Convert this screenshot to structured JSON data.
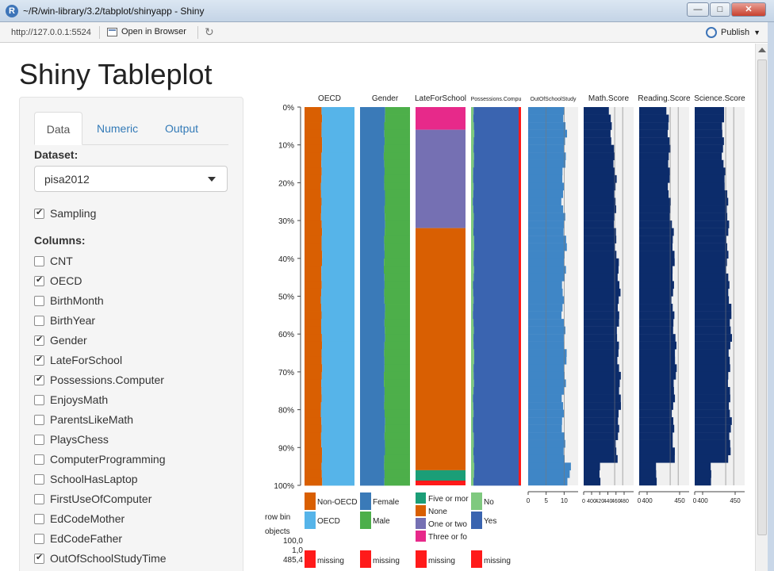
{
  "window": {
    "title": "~/R/win-library/3.2/tabplot/shinyapp - Shiny",
    "app_icon": "R",
    "buttons": [
      "minimize-icon",
      "maximize-icon",
      "close-icon"
    ]
  },
  "toolbar": {
    "url": "http://127.0.0.1:5524",
    "open_in_browser": "Open in Browser",
    "publish": "Publish"
  },
  "page": {
    "title": "Shiny Tableplot"
  },
  "sidebar": {
    "tabs": [
      "Data",
      "Numeric",
      "Output"
    ],
    "active_tab": "Data",
    "dataset_label": "Dataset:",
    "dataset_value": "pisa2012",
    "sampling": {
      "label": "Sampling",
      "checked": true
    },
    "columns_label": "Columns:",
    "columns": [
      {
        "label": "CNT",
        "checked": false
      },
      {
        "label": "OECD",
        "checked": true
      },
      {
        "label": "BirthMonth",
        "checked": false
      },
      {
        "label": "BirthYear",
        "checked": false
      },
      {
        "label": "Gender",
        "checked": true
      },
      {
        "label": "LateForSchool",
        "checked": true
      },
      {
        "label": "Possessions.Computer",
        "checked": true
      },
      {
        "label": "EnjoysMath",
        "checked": false
      },
      {
        "label": "ParentsLikeMath",
        "checked": false
      },
      {
        "label": "PlaysChess",
        "checked": false
      },
      {
        "label": "ComputerProgramming",
        "checked": false
      },
      {
        "label": "SchoolHasLaptop",
        "checked": false
      },
      {
        "label": "FirstUseOfComputer",
        "checked": false
      },
      {
        "label": "EdCodeMother",
        "checked": false
      },
      {
        "label": "EdCodeFather",
        "checked": false
      },
      {
        "label": "OutOfSchoolStudyTime",
        "checked": true
      }
    ]
  },
  "chart_data": {
    "type": "tableplot",
    "y_ticks": [
      "0%",
      "10%",
      "20%",
      "30%",
      "40%",
      "50%",
      "60%",
      "70%",
      "80%",
      "90%",
      "100%"
    ],
    "columns": [
      {
        "name": "OECD",
        "kind": "categorical",
        "levels": [
          {
            "label": "Non-OECD",
            "color": "#d95f02",
            "share": 0.34
          },
          {
            "label": "OECD",
            "color": "#56b4e9",
            "share": 0.66
          }
        ],
        "missing_color": "#ff1a1a"
      },
      {
        "name": "Gender",
        "kind": "categorical",
        "levels": [
          {
            "label": "Female",
            "color": "#3a7ab8",
            "share": 0.49
          },
          {
            "label": "Male",
            "color": "#4daf4a",
            "share": 0.51
          }
        ],
        "missing_color": "#ff1a1a"
      },
      {
        "name": "LateForSchool",
        "kind": "categorical",
        "levels": [
          {
            "label": "Five or more",
            "color": "#1b9e77",
            "share": 0.04
          },
          {
            "label": "None",
            "color": "#d95f02",
            "share": 0.64
          },
          {
            "label": "One or two",
            "color": "#7570b3",
            "share": 0.26
          },
          {
            "label": "Three or four",
            "color": "#e7298a",
            "share": 0.06
          }
        ],
        "legend_labels": [
          "Five or mor",
          "None",
          "One or two",
          "Three or fo"
        ],
        "missing_color": "#ff1a1a"
      },
      {
        "name": "Possessions.Computer",
        "kind": "categorical",
        "levels": [
          {
            "label": "No",
            "color": "#7fc97f",
            "share": 0.05
          },
          {
            "label": "Yes",
            "color": "#3a64b0",
            "share": 0.95
          }
        ],
        "missing_color": "#ff1a1a"
      },
      {
        "name": "OutOfSchoolStudyTime",
        "kind": "numeric",
        "ticks": [
          "0",
          "5",
          "10"
        ],
        "xlim": [
          0,
          14
        ]
      },
      {
        "name": "Math.Score",
        "kind": "numeric",
        "ticks": [
          "0",
          "400",
          "420",
          "440",
          "460",
          "480"
        ]
      },
      {
        "name": "Reading.Score",
        "kind": "numeric",
        "ticks": [
          "0",
          "400",
          "450"
        ]
      },
      {
        "name": "Science.Score",
        "kind": "numeric",
        "ticks": [
          "0",
          "400",
          "450"
        ]
      }
    ],
    "header_labels": [
      "OECD",
      "Gender",
      "LateForSchool",
      "Possessions.Compu",
      "OutOfSchoolStudy",
      "Math.Score",
      "Reading.Score",
      "Science.Score"
    ],
    "missing_label": "missing",
    "info": {
      "row_bins_label": "row bin",
      "objects_label": "objects",
      "bins_value": "100,0",
      "objects_value_1": "1,0",
      "objects_value_2": "485,4"
    },
    "colors": {
      "numeric_bar": "#0c2c6b",
      "numeric_bar_light": "#3f86c6",
      "panel_bg": "#f0f0f0"
    }
  }
}
